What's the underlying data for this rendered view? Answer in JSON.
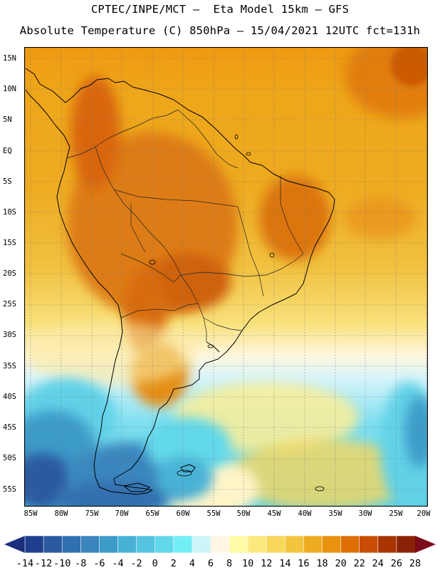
{
  "header": {
    "line1": "CPTEC/INPE/MCT –  Eta Model 15km – GFS",
    "line2": "Absolute Temperature (C) 850hPa – 15/04/2021 12UTC fct=131h"
  },
  "axes": {
    "lat_labels": [
      "15N",
      "10N",
      "5N",
      "EQ",
      "5S",
      "10S",
      "15S",
      "20S",
      "25S",
      "30S",
      "35S",
      "40S",
      "45S",
      "50S",
      "55S"
    ],
    "lon_labels": [
      "85W",
      "80W",
      "75W",
      "70W",
      "65W",
      "60W",
      "55W",
      "50W",
      "45W",
      "40W",
      "35W",
      "30W",
      "25W",
      "20W"
    ]
  },
  "colorbar": {
    "labels": [
      "-14",
      "-12",
      "-10",
      "-8",
      "-6",
      "-4",
      "-2",
      "0",
      "2",
      "4",
      "6",
      "8",
      "10",
      "12",
      "14",
      "16",
      "18",
      "20",
      "22",
      "24",
      "26",
      "28"
    ],
    "colors": [
      "#1f3f8e",
      "#2a5aa0",
      "#3070b0",
      "#3a86bd",
      "#3d9bc9",
      "#48b2d6",
      "#54c4e0",
      "#62d8ea",
      "#72eef4",
      "#cdf4fa",
      "#fff7e4",
      "#fffaa6",
      "#fbe97e",
      "#f8d75c",
      "#f3c43e",
      "#eeac22",
      "#e8920f",
      "#de6e06",
      "#c94d04",
      "#a83400",
      "#8a2205"
    ],
    "under_color": "#1a2f7d",
    "over_color": "#7d0a1a"
  },
  "field": {
    "variable": "Absolute Temperature",
    "units": "C",
    "level": "850hPa",
    "date": "15/04/2021 12UTC",
    "forecast": "fct=131h"
  }
}
